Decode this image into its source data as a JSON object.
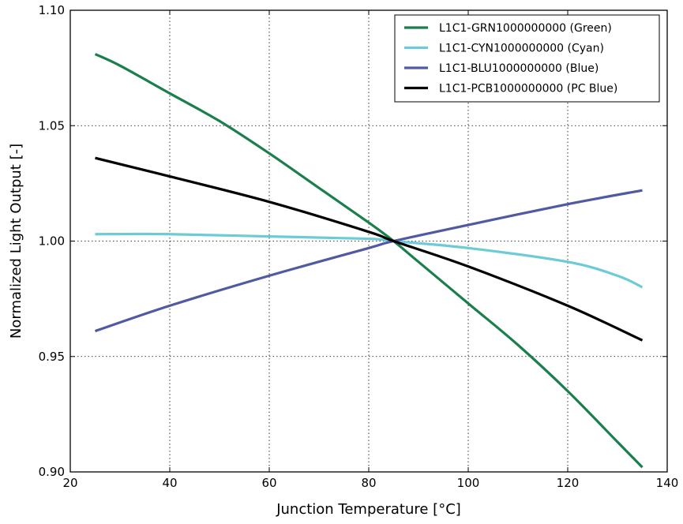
{
  "chart_data": {
    "type": "line",
    "title": "",
    "xlabel": "Junction Temperature [°C]",
    "ylabel": "Normalized Light Output [-]",
    "xlim": [
      20,
      140
    ],
    "ylim": [
      0.9,
      1.1
    ],
    "xticks": [
      "20",
      "40",
      "60",
      "80",
      "100",
      "120",
      "140"
    ],
    "yticks": [
      "0.90",
      "0.95",
      "1.00",
      "1.05",
      "1.10"
    ],
    "grid": true,
    "legend_position": "top-right",
    "series": [
      {
        "name": "L1C1-GRN1000000000 (Green)",
        "color": "#1a7f4b",
        "x": [
          25,
          30,
          40,
          50,
          60,
          70,
          80,
          85,
          90,
          100,
          110,
          120,
          130,
          135
        ],
        "y": [
          1.081,
          1.076,
          1.064,
          1.052,
          1.038,
          1.023,
          1.008,
          1.0,
          0.991,
          0.973,
          0.955,
          0.935,
          0.913,
          0.902
        ]
      },
      {
        "name": "L1C1-CYN1000000000 (Cyan)",
        "color": "#6ccbd6",
        "x": [
          25,
          40,
          60,
          80,
          85,
          100,
          120,
          130,
          135
        ],
        "y": [
          1.003,
          1.003,
          1.002,
          1.001,
          1.0,
          0.997,
          0.991,
          0.985,
          0.98
        ]
      },
      {
        "name": "L1C1-BLU1000000000 (Blue)",
        "color": "#4f5aa3",
        "x": [
          25,
          40,
          60,
          80,
          85,
          100,
          120,
          135
        ],
        "y": [
          0.961,
          0.972,
          0.985,
          0.997,
          1.0,
          1.007,
          1.016,
          1.022
        ]
      },
      {
        "name": "L1C1-PCB1000000000 (PC Blue)",
        "color": "#000000",
        "x": [
          25,
          40,
          60,
          80,
          85,
          100,
          120,
          135
        ],
        "y": [
          1.036,
          1.028,
          1.017,
          1.004,
          1.0,
          0.989,
          0.972,
          0.957
        ]
      }
    ]
  }
}
